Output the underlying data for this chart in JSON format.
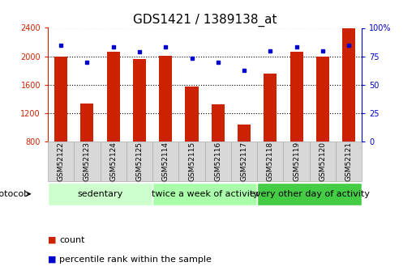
{
  "title": "GDS1421 / 1389138_at",
  "samples": [
    "GSM52122",
    "GSM52123",
    "GSM52124",
    "GSM52125",
    "GSM52114",
    "GSM52115",
    "GSM52116",
    "GSM52117",
    "GSM52118",
    "GSM52119",
    "GSM52120",
    "GSM52121"
  ],
  "counts": [
    2000,
    1340,
    2070,
    1960,
    2010,
    1580,
    1330,
    1040,
    1760,
    2070,
    2000,
    2400
  ],
  "percentiles": [
    85,
    70,
    83,
    79,
    83,
    73,
    70,
    63,
    80,
    83,
    80,
    85
  ],
  "ymin": 800,
  "ymax": 2400,
  "yticks": [
    800,
    1200,
    1600,
    2000,
    2400
  ],
  "y2min": 0,
  "y2max": 100,
  "y2ticks": [
    0,
    25,
    50,
    75,
    100
  ],
  "y2tick_labels": [
    "0",
    "25",
    "50",
    "75",
    "100%"
  ],
  "bar_color": "#cc2200",
  "dot_color": "#0000cc",
  "groups": [
    {
      "label": "sedentary",
      "start": 0,
      "end": 4,
      "color": "#ccffcc"
    },
    {
      "label": "twice a week of activity",
      "start": 4,
      "end": 8,
      "color": "#aaffaa"
    },
    {
      "label": "every other day of activity",
      "start": 8,
      "end": 12,
      "color": "#44cc44"
    }
  ],
  "protocol_label": "protocol",
  "legend_count_label": "count",
  "legend_pct_label": "percentile rank within the sample",
  "bg_color": "#ffffff",
  "plot_bg_color": "#ffffff",
  "title_fontsize": 11,
  "tick_label_fontsize": 7,
  "group_label_fontsize": 8,
  "legend_fontsize": 8,
  "sample_label_fontsize": 6.5,
  "bar_width": 0.5
}
